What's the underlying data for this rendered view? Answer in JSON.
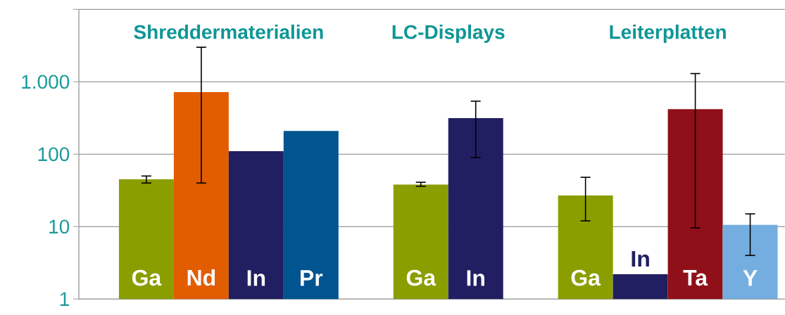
{
  "chart_data": {
    "type": "bar",
    "log": "y",
    "grid": "y",
    "categories": [
      "Ga",
      "Nd",
      "In",
      "Pr",
      null,
      "Ga",
      "In",
      null,
      "Ga",
      "In",
      "Ta",
      "Y"
    ],
    "values": [
      45,
      720,
      110,
      210,
      null,
      38,
      315,
      null,
      27,
      2.2,
      420,
      10.6
    ],
    "colors": [
      "#8a9e00",
      "#e25c00",
      "#211e62",
      "#00548f",
      null,
      "#8a9e00",
      "#211e62",
      null,
      "#8a9e00",
      "#211e62",
      "#8f1018",
      "#74aee0"
    ],
    "errors": [
      [
        40,
        50
      ],
      [
        40,
        3000
      ],
      null,
      null,
      null,
      [
        36,
        41
      ],
      [
        90,
        540
      ],
      null,
      [
        12,
        48
      ],
      null,
      [
        9.6,
        1300
      ],
      [
        4,
        15
      ]
    ],
    "ylim": [
      1,
      10000
    ],
    "yticks": [
      {
        "value": 1,
        "label": "1"
      },
      {
        "value": 10,
        "label": "10"
      },
      {
        "value": 100,
        "label": "100"
      },
      {
        "value": 1000,
        "label": "1.000"
      },
      {
        "value": 10000,
        "label": null
      }
    ],
    "annotations": [
      "Shreddermaterialien",
      "LC-Displays",
      "Leiterplatten"
    ]
  }
}
